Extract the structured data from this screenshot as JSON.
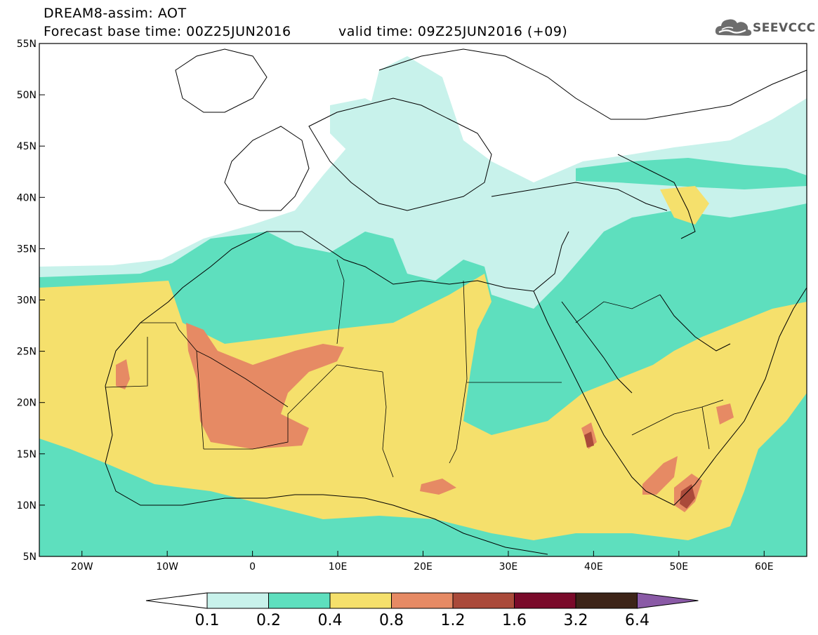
{
  "header": {
    "title": "DREAM8-assim: AOT",
    "base_time_label": "Forecast base time: 00Z25JUN2016",
    "valid_time_label": "valid time: 09Z25JUN2016 (+09)"
  },
  "logo": {
    "text": "SEEVCCC",
    "icon": "cloud-icon"
  },
  "map": {
    "lat_ticks": [
      "55N",
      "50N",
      "45N",
      "40N",
      "35N",
      "30N",
      "25N",
      "20N",
      "15N",
      "10N",
      "5N"
    ],
    "lon_ticks": [
      "20W",
      "10W",
      "0",
      "10E",
      "20E",
      "30E",
      "40E",
      "50E",
      "60E"
    ],
    "lon_range": [
      -25,
      65
    ],
    "lat_range": [
      5,
      55
    ]
  },
  "colorbar": {
    "levels": [
      "0.1",
      "0.2",
      "0.4",
      "0.8",
      "1.2",
      "1.6",
      "3.2",
      "6.4"
    ],
    "colors": [
      "#ffffff",
      "#c8f2eb",
      "#5edfbe",
      "#f5e06c",
      "#e68a64",
      "#aa4a3a",
      "#7a0a2a",
      "#3d2418",
      "#8a5aa6"
    ]
  },
  "palette": {
    "c1": "#c8f2eb",
    "c2": "#5edfbe",
    "c3": "#f5e06c",
    "c4": "#e68a64",
    "c5": "#aa4a3a",
    "c6": "#7a0a2a"
  }
}
